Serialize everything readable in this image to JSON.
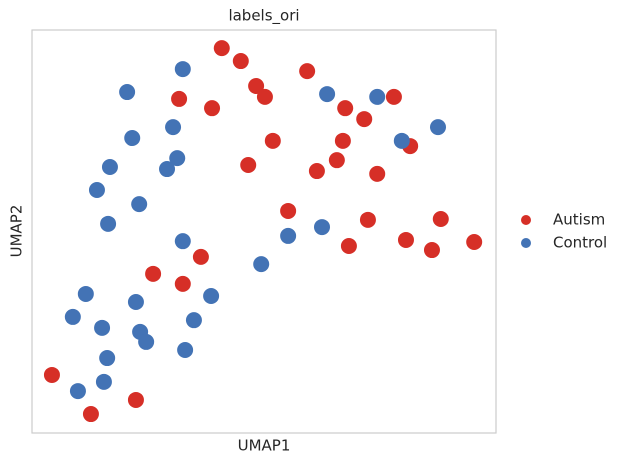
{
  "chart_data": {
    "type": "scatter",
    "title": "labels_ori",
    "xlabel": "UMAP1",
    "ylabel": "UMAP2",
    "xlim": [
      0,
      10
    ],
    "ylim": [
      0,
      10
    ],
    "grid": false,
    "legend": "right",
    "series": [
      {
        "name": "Autism",
        "color": "#d62f27",
        "x": [
          4.09,
          4.5,
          5.93,
          4.83,
          5.02,
          3.17,
          3.88,
          7.8,
          6.75,
          7.16,
          5.19,
          6.7,
          8.15,
          6.57,
          4.66,
          6.14,
          7.44,
          5.52,
          7.24,
          8.81,
          6.83,
          8.06,
          8.62,
          9.53,
          3.64,
          2.61,
          3.25,
          0.43,
          2.24,
          1.27
        ],
        "y": [
          9.55,
          9.23,
          8.98,
          8.61,
          8.34,
          8.29,
          8.06,
          8.34,
          8.06,
          7.79,
          7.25,
          7.25,
          7.12,
          6.77,
          6.65,
          6.5,
          6.43,
          5.51,
          5.29,
          5.31,
          4.64,
          4.79,
          4.54,
          4.74,
          4.37,
          3.95,
          3.7,
          1.44,
          0.82,
          0.47
        ]
      },
      {
        "name": "Control",
        "color": "#4373b5",
        "x": [
          3.25,
          2.05,
          6.36,
          7.44,
          8.75,
          7.97,
          3.04,
          2.16,
          3.13,
          1.68,
          2.91,
          1.4,
          2.31,
          1.64,
          3.25,
          5.52,
          6.25,
          4.94,
          1.16,
          2.24,
          3.86,
          0.88,
          1.51,
          3.49,
          2.33,
          2.46,
          3.3,
          1.62,
          1.55,
          0.99
        ],
        "y": [
          9.03,
          8.46,
          8.41,
          8.34,
          7.59,
          7.25,
          7.59,
          7.32,
          6.82,
          6.6,
          6.55,
          6.03,
          5.68,
          5.19,
          4.76,
          4.89,
          5.11,
          4.19,
          3.45,
          3.25,
          3.4,
          2.88,
          2.61,
          2.8,
          2.51,
          2.26,
          2.06,
          1.86,
          1.27,
          1.04
        ]
      }
    ]
  }
}
